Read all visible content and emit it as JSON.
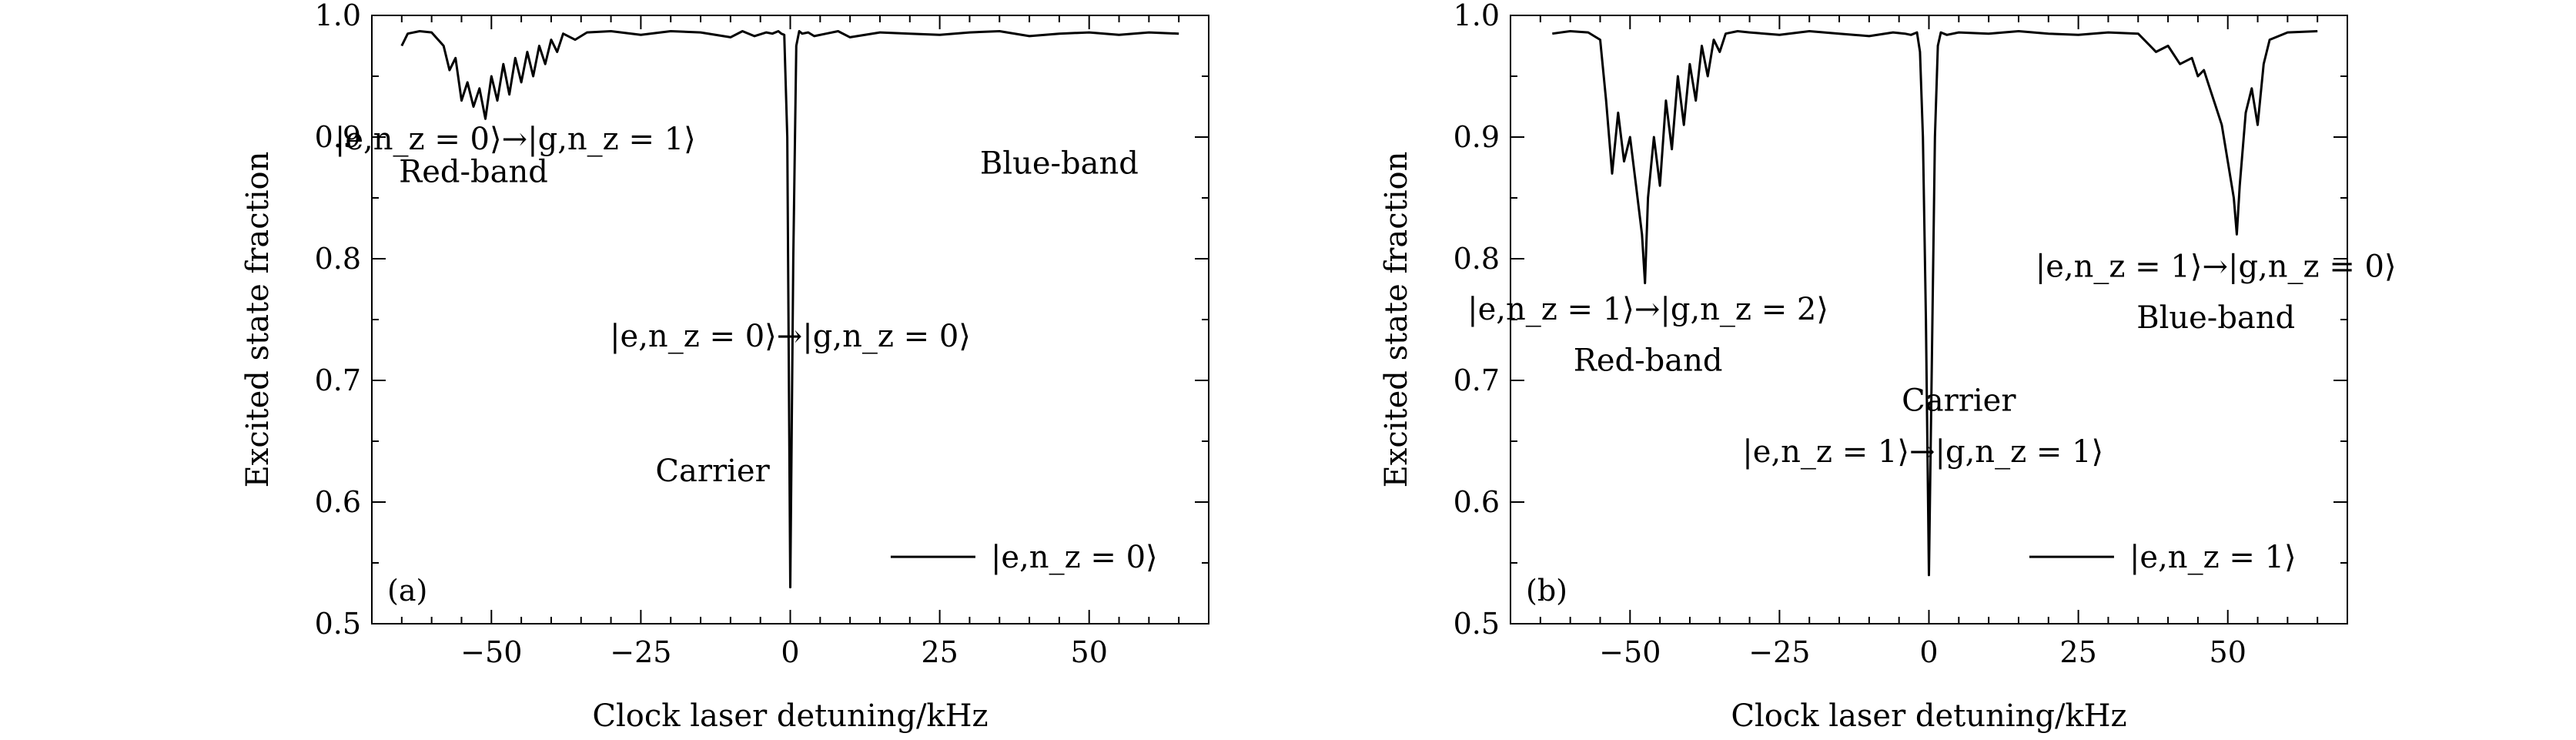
{
  "chart_data": [
    {
      "type": "line",
      "panel_label": "(a)",
      "xlabel": "Clock laser detuning/kHz",
      "ylabel": "Excited state fraction",
      "xlim": [
        -70,
        70
      ],
      "ylim": [
        0.5,
        1.0
      ],
      "xticks": [
        -50,
        -25,
        0,
        25,
        50
      ],
      "xtick_labels": [
        "−50",
        "−25",
        "0",
        "25",
        "50"
      ],
      "yticks": [
        0.5,
        0.6,
        0.7,
        0.8,
        0.9,
        1.0
      ],
      "ytick_labels": [
        "0.5",
        "0.6",
        "0.7",
        "0.8",
        "0.9",
        "1.0"
      ],
      "legend": {
        "position": "bottom-right",
        "entries": [
          "|e,n_z = 0⟩"
        ]
      },
      "annotations": [
        {
          "text": "|e,n_z = 0⟩→|g,n_z = 1⟩",
          "x": -46,
          "y": 0.89
        },
        {
          "text": "Red-band",
          "x": -53,
          "y": 0.863
        },
        {
          "text": "Blue-band",
          "x": 45,
          "y": 0.87
        },
        {
          "text": "|e,n_z = 0⟩→|g,n_z = 0⟩",
          "x": 0,
          "y": 0.728
        },
        {
          "text": "Carrier",
          "x": -13,
          "y": 0.617
        }
      ],
      "series": [
        {
          "x": [
            -65,
            -64,
            -62,
            -60,
            -58,
            -57,
            -56,
            -55,
            -54,
            -53,
            -52,
            -51,
            -50,
            -49,
            -48,
            -47,
            -46,
            -45,
            -44,
            -43,
            -42,
            -41,
            -40,
            -39,
            -38,
            -36,
            -34,
            -30,
            -25,
            -20,
            -15,
            -10,
            -8,
            -6,
            -4,
            -3,
            -2,
            -1.5,
            -1,
            -0.5,
            0,
            0.5,
            1,
            1.5,
            2,
            3,
            4,
            6,
            8,
            10,
            15,
            20,
            25,
            30,
            35,
            40,
            45,
            50,
            55,
            60,
            65
          ],
          "y": [
            0.975,
            0.985,
            0.987,
            0.986,
            0.975,
            0.955,
            0.965,
            0.93,
            0.945,
            0.925,
            0.94,
            0.915,
            0.95,
            0.93,
            0.96,
            0.935,
            0.965,
            0.945,
            0.97,
            0.95,
            0.975,
            0.96,
            0.98,
            0.97,
            0.985,
            0.98,
            0.986,
            0.987,
            0.984,
            0.987,
            0.986,
            0.982,
            0.987,
            0.983,
            0.986,
            0.985,
            0.987,
            0.985,
            0.984,
            0.9,
            0.53,
            0.8,
            0.975,
            0.987,
            0.985,
            0.986,
            0.983,
            0.985,
            0.987,
            0.982,
            0.986,
            0.985,
            0.984,
            0.986,
            0.987,
            0.983,
            0.985,
            0.986,
            0.984,
            0.986,
            0.985
          ]
        }
      ]
    },
    {
      "type": "line",
      "panel_label": "(b)",
      "xlabel": "Clock laser detuning/kHz",
      "ylabel": "Excited state fraction",
      "xlim": [
        -70,
        70
      ],
      "ylim": [
        0.5,
        1.0
      ],
      "xticks": [
        -50,
        -25,
        0,
        25,
        50
      ],
      "xtick_labels": [
        "−50",
        "−25",
        "0",
        "25",
        "50"
      ],
      "yticks": [
        0.5,
        0.6,
        0.7,
        0.8,
        0.9,
        1.0
      ],
      "ytick_labels": [
        "0.5",
        "0.6",
        "0.7",
        "0.8",
        "0.9",
        "1.0"
      ],
      "legend": {
        "position": "bottom-right",
        "entries": [
          "|e,n_z = 1⟩"
        ]
      },
      "annotations": [
        {
          "text": "|e,n_z = 1⟩→|g,n_z = 2⟩",
          "x": -47,
          "y": 0.75
        },
        {
          "text": "Red-band",
          "x": -47,
          "y": 0.708
        },
        {
          "text": "|e,n_z = 1⟩→|g,n_z = 0⟩",
          "x": 48,
          "y": 0.785
        },
        {
          "text": "Blue-band",
          "x": 48,
          "y": 0.743
        },
        {
          "text": "Carrier",
          "x": 5,
          "y": 0.675
        },
        {
          "text": "|e,n_z = 1⟩→|g,n_z = 1⟩",
          "x": -1,
          "y": 0.633
        }
      ],
      "series": [
        {
          "x": [
            -63,
            -60,
            -57,
            -55,
            -54,
            -53,
            -52,
            -51,
            -50,
            -49,
            -48,
            -47.5,
            -47,
            -46,
            -45,
            -44,
            -43,
            -42,
            -41,
            -40,
            -39,
            -38,
            -37,
            -36,
            -35,
            -34,
            -32,
            -30,
            -25,
            -20,
            -15,
            -10,
            -6,
            -4,
            -3,
            -2,
            -1.5,
            -1,
            -0.5,
            0,
            0.5,
            1,
            1.5,
            2,
            3,
            5,
            10,
            15,
            20,
            25,
            30,
            35,
            38,
            40,
            42,
            44,
            45,
            46,
            47,
            48,
            49,
            50,
            51,
            51.5,
            52,
            53,
            54,
            55,
            56,
            57,
            60,
            65
          ],
          "y": [
            0.985,
            0.987,
            0.986,
            0.98,
            0.93,
            0.87,
            0.92,
            0.88,
            0.9,
            0.86,
            0.82,
            0.78,
            0.85,
            0.9,
            0.86,
            0.93,
            0.89,
            0.95,
            0.91,
            0.96,
            0.93,
            0.975,
            0.95,
            0.98,
            0.97,
            0.985,
            0.987,
            0.986,
            0.984,
            0.987,
            0.985,
            0.983,
            0.986,
            0.985,
            0.984,
            0.986,
            0.97,
            0.9,
            0.75,
            0.54,
            0.72,
            0.9,
            0.975,
            0.986,
            0.984,
            0.986,
            0.985,
            0.987,
            0.985,
            0.984,
            0.986,
            0.985,
            0.97,
            0.975,
            0.96,
            0.965,
            0.95,
            0.955,
            0.94,
            0.925,
            0.91,
            0.88,
            0.85,
            0.82,
            0.86,
            0.92,
            0.94,
            0.91,
            0.96,
            0.98,
            0.986,
            0.987
          ]
        }
      ]
    }
  ]
}
